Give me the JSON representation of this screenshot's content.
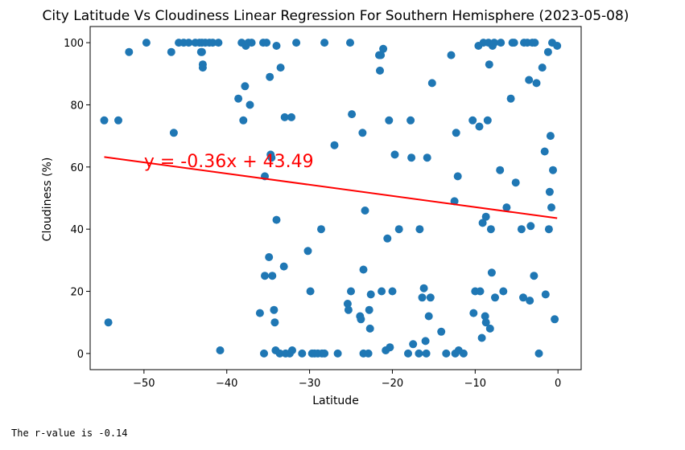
{
  "chart_data": {
    "type": "scatter",
    "title": "City Latitude Vs Cloudiness Linear Regression For Southern Hemisphere (2023-05-08)",
    "xlabel": "Latitude",
    "ylabel": "Cloudiness (%)",
    "xlim": [
      -56.5,
      2.8
    ],
    "ylim": [
      -5.2,
      105.2
    ],
    "xticks": [
      -50,
      -40,
      -30,
      -20,
      -10,
      0
    ],
    "yticks": [
      0,
      20,
      40,
      60,
      80,
      100
    ],
    "xtick_labels": [
      "−50",
      "−40",
      "−30",
      "−20",
      "−10",
      "0"
    ],
    "ytick_labels": [
      "0",
      "20",
      "40",
      "60",
      "80",
      "100"
    ],
    "grid": false,
    "marker_color": "#1f77b4",
    "line_color": "#ff0000",
    "regression": {
      "slope": -0.36,
      "intercept": 43.49,
      "x_start": -54.8,
      "x_end": -0.1,
      "equation": "y = -0.36x + 43.49",
      "label_x": -50,
      "label_y": 60
    },
    "points": [
      [
        -54.8,
        75
      ],
      [
        -54.3,
        10
      ],
      [
        -53.1,
        75
      ],
      [
        -51.8,
        97
      ],
      [
        -49.7,
        100
      ],
      [
        -46.7,
        97
      ],
      [
        -46.4,
        71
      ],
      [
        -45.8,
        100
      ],
      [
        -45.2,
        100
      ],
      [
        -44.6,
        100
      ],
      [
        -43.8,
        100
      ],
      [
        -43.3,
        100
      ],
      [
        -43.0,
        100
      ],
      [
        -42.9,
        92
      ],
      [
        -42.9,
        93
      ],
      [
        -43.0,
        97
      ],
      [
        -43.1,
        97
      ],
      [
        -42.6,
        100
      ],
      [
        -42.1,
        100
      ],
      [
        -41.7,
        100
      ],
      [
        -41.0,
        100
      ],
      [
        -40.8,
        1
      ],
      [
        -38.6,
        82
      ],
      [
        -38.2,
        100
      ],
      [
        -38.0,
        75
      ],
      [
        -37.8,
        86
      ],
      [
        -37.7,
        99
      ],
      [
        -37.4,
        100
      ],
      [
        -37.2,
        80
      ],
      [
        -37.0,
        100
      ],
      [
        -36.0,
        13
      ],
      [
        -35.6,
        100
      ],
      [
        -35.4,
        57
      ],
      [
        -35.2,
        100
      ],
      [
        -35.4,
        25
      ],
      [
        -35.5,
        0
      ],
      [
        -34.9,
        31
      ],
      [
        -34.8,
        89
      ],
      [
        -34.7,
        64
      ],
      [
        -34.6,
        63
      ],
      [
        -34.5,
        25
      ],
      [
        -34.3,
        14
      ],
      [
        -34.2,
        10
      ],
      [
        -34.1,
        1
      ],
      [
        -34.0,
        43
      ],
      [
        -34.0,
        99
      ],
      [
        -33.5,
        92
      ],
      [
        -33.6,
        0
      ],
      [
        -33.1,
        28
      ],
      [
        -33.0,
        76
      ],
      [
        -32.9,
        0
      ],
      [
        -32.4,
        0
      ],
      [
        -32.2,
        76
      ],
      [
        -32.1,
        1
      ],
      [
        -31.6,
        100
      ],
      [
        -30.9,
        0
      ],
      [
        -30.2,
        33
      ],
      [
        -29.9,
        20
      ],
      [
        -29.7,
        0
      ],
      [
        -29.4,
        0
      ],
      [
        -29.0,
        0
      ],
      [
        -28.6,
        40
      ],
      [
        -28.5,
        0
      ],
      [
        -28.2,
        0
      ],
      [
        -28.2,
        100
      ],
      [
        -27.0,
        67
      ],
      [
        -26.6,
        0
      ],
      [
        -25.4,
        16
      ],
      [
        -25.3,
        14
      ],
      [
        -25.1,
        100
      ],
      [
        -24.9,
        77
      ],
      [
        -25.0,
        20
      ],
      [
        -23.9,
        12
      ],
      [
        -23.8,
        11
      ],
      [
        -23.6,
        71
      ],
      [
        -23.5,
        27
      ],
      [
        -23.5,
        0
      ],
      [
        -23.3,
        46
      ],
      [
        -22.9,
        0
      ],
      [
        -22.8,
        14
      ],
      [
        -22.7,
        8
      ],
      [
        -22.6,
        19
      ],
      [
        -21.6,
        96
      ],
      [
        -21.5,
        91
      ],
      [
        -21.4,
        96
      ],
      [
        -21.3,
        20
      ],
      [
        -21.1,
        98
      ],
      [
        -20.8,
        1
      ],
      [
        -20.6,
        37
      ],
      [
        -20.4,
        75
      ],
      [
        -20.3,
        2
      ],
      [
        -20.0,
        20
      ],
      [
        -19.7,
        64
      ],
      [
        -19.2,
        40
      ],
      [
        -18.1,
        0
      ],
      [
        -17.8,
        75
      ],
      [
        -17.7,
        63
      ],
      [
        -17.5,
        3
      ],
      [
        -16.7,
        40
      ],
      [
        -16.8,
        0
      ],
      [
        -16.4,
        18
      ],
      [
        -16.2,
        21
      ],
      [
        -16.0,
        4
      ],
      [
        -15.9,
        0
      ],
      [
        -15.8,
        63
      ],
      [
        -15.6,
        12
      ],
      [
        -15.4,
        18
      ],
      [
        -15.2,
        87
      ],
      [
        -14.1,
        7
      ],
      [
        -13.5,
        0
      ],
      [
        -12.9,
        96
      ],
      [
        -12.5,
        49
      ],
      [
        -12.4,
        0
      ],
      [
        -12.3,
        71
      ],
      [
        -12.1,
        57
      ],
      [
        -12.0,
        1
      ],
      [
        -11.4,
        0
      ],
      [
        -10.3,
        75
      ],
      [
        -10.2,
        13
      ],
      [
        -10.0,
        20
      ],
      [
        -9.6,
        99
      ],
      [
        -9.5,
        73
      ],
      [
        -9.4,
        20
      ],
      [
        -9.2,
        5
      ],
      [
        -9.1,
        42
      ],
      [
        -9.0,
        100
      ],
      [
        -8.8,
        12
      ],
      [
        -8.7,
        10
      ],
      [
        -8.7,
        44
      ],
      [
        -8.5,
        75
      ],
      [
        -8.4,
        100
      ],
      [
        -8.3,
        93
      ],
      [
        -8.2,
        8
      ],
      [
        -8.1,
        40
      ],
      [
        -8.0,
        26
      ],
      [
        -7.9,
        99
      ],
      [
        -7.7,
        100
      ],
      [
        -7.6,
        18
      ],
      [
        -7.0,
        59
      ],
      [
        -6.9,
        100
      ],
      [
        -6.6,
        20
      ],
      [
        -6.2,
        47
      ],
      [
        -5.7,
        82
      ],
      [
        -5.5,
        100
      ],
      [
        -5.3,
        100
      ],
      [
        -5.1,
        55
      ],
      [
        -4.4,
        40
      ],
      [
        -4.2,
        18
      ],
      [
        -4.1,
        100
      ],
      [
        -3.7,
        100
      ],
      [
        -3.5,
        88
      ],
      [
        -3.4,
        17
      ],
      [
        -3.3,
        41
      ],
      [
        -3.1,
        100
      ],
      [
        -2.9,
        25
      ],
      [
        -2.8,
        100
      ],
      [
        -2.6,
        87
      ],
      [
        -2.3,
        0
      ],
      [
        -1.9,
        92
      ],
      [
        -1.6,
        65
      ],
      [
        -1.5,
        19
      ],
      [
        -1.2,
        97
      ],
      [
        -1.1,
        40
      ],
      [
        -1.0,
        52
      ],
      [
        -0.9,
        70
      ],
      [
        -0.8,
        47
      ],
      [
        -0.7,
        100
      ],
      [
        -0.6,
        59
      ],
      [
        -0.4,
        11
      ],
      [
        -0.1,
        99
      ]
    ]
  },
  "output": {
    "rvalue_text": "The r-value is -0.14"
  }
}
